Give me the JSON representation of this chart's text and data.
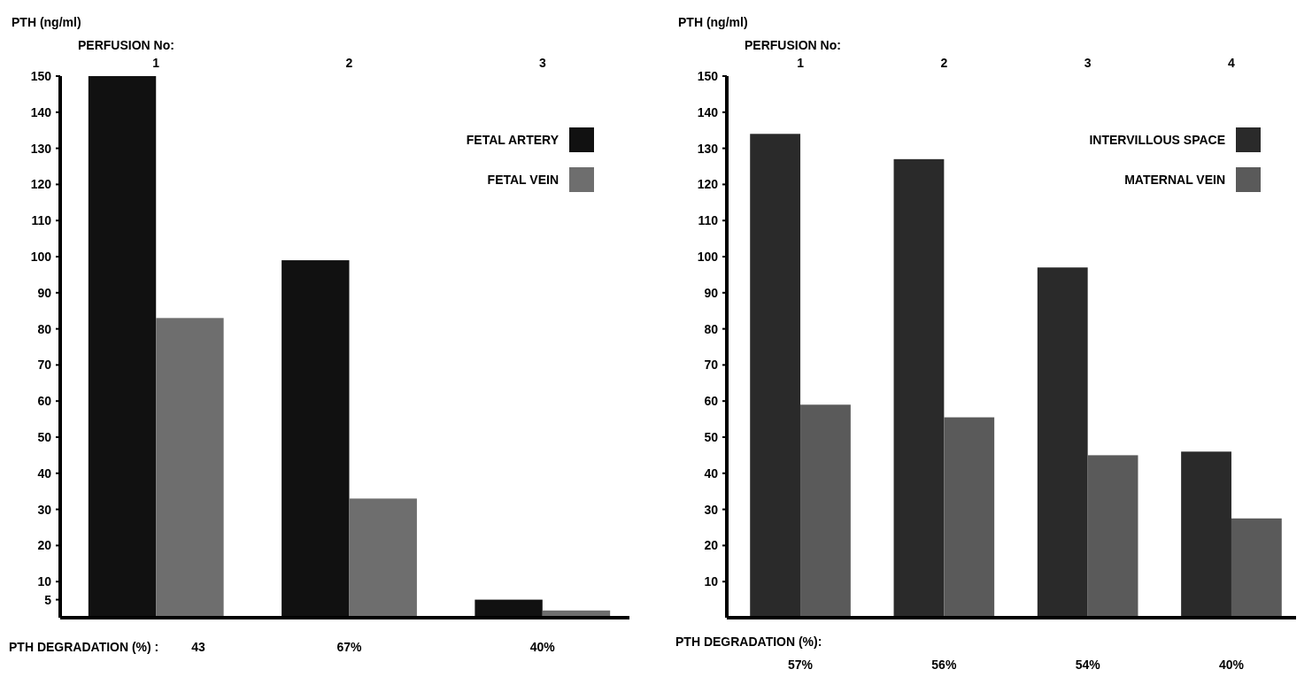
{
  "chart_data": [
    {
      "type": "bar",
      "ylabel": "PTH (ng/ml)",
      "xlabel": "PERFUSION No:",
      "categories": [
        "1",
        "2",
        "3"
      ],
      "series": [
        {
          "name": "FETAL ARTERY",
          "color": "#111111",
          "values": [
            150,
            99,
            5
          ]
        },
        {
          "name": "FETAL VEIN",
          "color": "#6e6e6e",
          "values": [
            83,
            33,
            2
          ]
        }
      ],
      "ylim": [
        0,
        150
      ],
      "yticks": [
        5,
        10,
        20,
        30,
        40,
        50,
        60,
        70,
        80,
        90,
        100,
        110,
        120,
        130,
        140,
        150
      ],
      "legend": "top right",
      "annotations": [
        "PTH DEGRADATION (%) :",
        "43",
        "67%",
        "40%"
      ]
    },
    {
      "type": "bar",
      "ylabel": "PTH (ng/ml)",
      "xlabel": "PERFUSION No:",
      "categories": [
        "1",
        "2",
        "3",
        "4"
      ],
      "series": [
        {
          "name": "INTERVILLOUS SPACE",
          "color": "#2a2a2a",
          "values": [
            134,
            127,
            97,
            46
          ]
        },
        {
          "name": "MATERNAL VEIN",
          "color": "#5a5a5a",
          "values": [
            59,
            55.5,
            45,
            27.5
          ]
        }
      ],
      "ylim": [
        0,
        150
      ],
      "yticks": [
        10,
        20,
        30,
        40,
        50,
        60,
        70,
        80,
        90,
        100,
        110,
        120,
        130,
        140,
        150
      ],
      "legend": "top right",
      "annotations": [
        "PTH DEGRADATION (%):",
        "57%",
        "56%",
        "54%",
        "40%"
      ]
    }
  ]
}
